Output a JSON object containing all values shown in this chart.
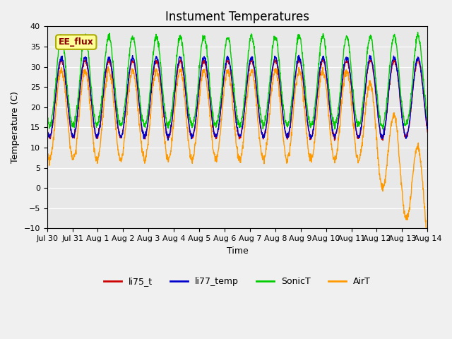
{
  "title": "Instument Temperatures",
  "xlabel": "Time",
  "ylabel": "Temperature (C)",
  "ylim": [
    -10,
    40
  ],
  "yticks": [
    -10,
    -5,
    0,
    5,
    10,
    15,
    20,
    25,
    30,
    35,
    40
  ],
  "annotation_text": "EE_flux",
  "fig_facecolor": "#f0f0f0",
  "axes_facecolor": "#e8e8e8",
  "line_colors": {
    "li75_t": "#cc0000",
    "li77_temp": "#0000cc",
    "SonicT": "#00cc00",
    "AirT": "#ff9900"
  },
  "legend_labels": [
    "li75_t",
    "li77_temp",
    "SonicT",
    "AirT"
  ],
  "xtick_labels": [
    "Jul 30",
    "Jul 31",
    "Aug 1",
    "Aug 2",
    "Aug 3",
    "Aug 4",
    "Aug 5",
    "Aug 6",
    "Aug 7",
    "Aug 8",
    "Aug 9",
    "Aug 10",
    "Aug 11",
    "Aug 12",
    "Aug 13",
    "Aug 14"
  ],
  "n_days": 16,
  "pts_per_day": 96,
  "drop_day": 13.2,
  "drop_amount": 22
}
